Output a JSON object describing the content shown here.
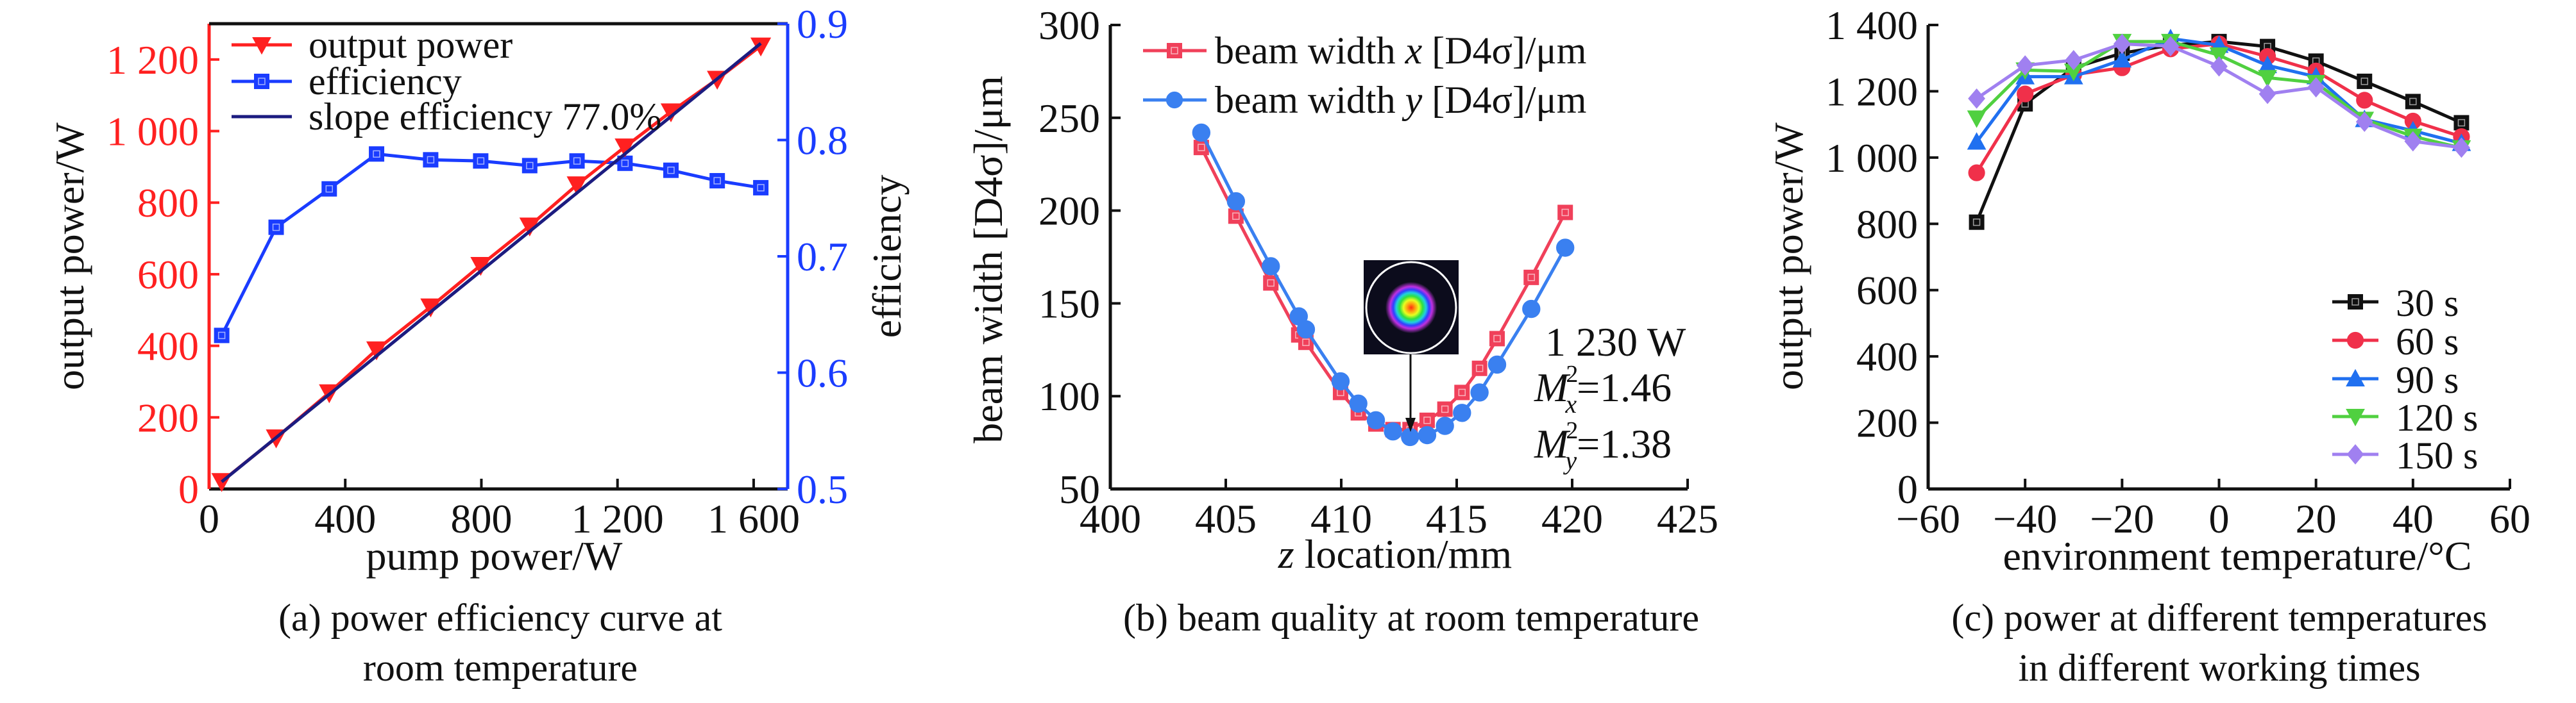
{
  "chart_data": [
    {
      "type": "line",
      "caption": [
        "(a) power efficiency curve at",
        "room temperature"
      ],
      "xlabel": "pump power/W",
      "ylabel": "output power/W",
      "y2label": "efficiency",
      "xlim": [
        0,
        1700
      ],
      "ylim": [
        0,
        1300
      ],
      "y2lim": [
        0.5,
        0.9
      ],
      "xticks": [
        0,
        400,
        800,
        1200,
        1600
      ],
      "xtick_labels": [
        "0",
        "400",
        "800",
        "1 200",
        "1 600"
      ],
      "yticks": [
        0,
        200,
        400,
        600,
        800,
        1000,
        1200
      ],
      "ytick_labels": [
        "0",
        "200",
        "400",
        "600",
        "800",
        "1 000",
        "1 200"
      ],
      "y2ticks": [
        0.5,
        0.6,
        0.7,
        0.8,
        0.9
      ],
      "y2tick_labels": [
        "0.5",
        "0.6",
        "0.7",
        "0.8",
        "0.9"
      ],
      "left_axis_color": "#ff2020",
      "right_axis_color": "#1a3cff",
      "legend_position": "top-left",
      "x": [
        37,
        197,
        353,
        492,
        651,
        798,
        942,
        1081,
        1222,
        1357,
        1493,
        1621
      ],
      "series": [
        {
          "name": "output power",
          "axis": "left",
          "marker": "triangle-down",
          "color": "#ff2020",
          "values": [
            21,
            143,
            269,
            389,
            509,
            625,
            735,
            850,
            956,
            1054,
            1145,
            1238
          ]
        },
        {
          "name": "efficiency",
          "axis": "right",
          "marker": "square",
          "color": "#1a3cff",
          "values": [
            0.632,
            0.725,
            0.758,
            0.788,
            0.783,
            0.782,
            0.778,
            0.782,
            0.78,
            0.774,
            0.765,
            0.759
          ]
        },
        {
          "name": "slope efficiency 77.0%",
          "axis": "left",
          "marker": "none",
          "color": "#1c1c80",
          "x": [
            37,
            1621
          ],
          "values": [
            20,
            1245
          ]
        }
      ]
    },
    {
      "type": "line",
      "caption": [
        "(b) beam quality at room temperature"
      ],
      "xlabel_italic": "z",
      "xlabel": " location/mm",
      "ylabel": "beam width [D4σ]/μm",
      "xlim": [
        400,
        425
      ],
      "ylim": [
        50,
        300
      ],
      "xticks": [
        400,
        405,
        410,
        415,
        420,
        425
      ],
      "xtick_labels": [
        "400",
        "405",
        "410",
        "415",
        "420",
        "425"
      ],
      "yticks": [
        50,
        100,
        150,
        200,
        250,
        300
      ],
      "ytick_labels": [
        "50",
        "100",
        "150",
        "200",
        "250",
        "300"
      ],
      "legend_position": "top",
      "x": [
        403.94,
        405.44,
        406.95,
        408.16,
        408.47,
        409.97,
        410.74,
        411.5,
        412.24,
        412.98,
        413.72,
        414.49,
        415.23,
        415.99,
        416.75,
        418.23,
        419.7
      ],
      "series": [
        {
          "name_pre": "beam width ",
          "name_italic": "x",
          "name_post": " [D4σ]/μm",
          "marker": "square",
          "color": "#f0405a",
          "values": [
            234,
            197,
            161,
            133,
            129,
            102,
            91,
            85,
            82,
            82,
            87,
            93,
            102,
            115,
            131,
            164,
            199
          ]
        },
        {
          "name_pre": "beam width ",
          "name_italic": "y",
          "name_post": " [D4σ]/μm",
          "marker": "circle",
          "color": "#3a80f0",
          "values": [
            242,
            205,
            170,
            143,
            136,
            108,
            96,
            87,
            81,
            78,
            79,
            84,
            91,
            102,
            117,
            147,
            180
          ]
        }
      ],
      "annotation": {
        "power": "1 230 W",
        "mx": {
          "symbol": "M",
          "sub": "x",
          "sup": "2",
          "value": "=1.46"
        },
        "my": {
          "symbol": "M",
          "sub": "y",
          "sup": "2",
          "value": "=1.38"
        },
        "arrow_target_x": 413
      }
    },
    {
      "type": "line",
      "caption": [
        "(c) power at different temperatures",
        "in different working times"
      ],
      "xlabel": "environment temperature/°C",
      "ylabel": "output power/W",
      "xlim": [
        -60,
        60
      ],
      "ylim": [
        0,
        1400
      ],
      "xticks": [
        -60,
        -40,
        -20,
        0,
        20,
        40,
        60
      ],
      "xtick_labels": [
        "−60",
        "−40",
        "−20",
        "0",
        "20",
        "40",
        "60"
      ],
      "yticks": [
        0,
        200,
        400,
        600,
        800,
        1000,
        1200,
        1400
      ],
      "ytick_labels": [
        "0",
        "200",
        "400",
        "600",
        "800",
        "1 000",
        "1 200",
        "1 400"
      ],
      "legend_position": "bottom-right",
      "x": [
        -50,
        -40,
        -30,
        -20,
        -10,
        0,
        10,
        20,
        30,
        40,
        50
      ],
      "series": [
        {
          "name": "30 s",
          "marker": "square",
          "color": "#111111",
          "values": [
            805,
            1162,
            1271,
            1315,
            1339,
            1350,
            1335,
            1291,
            1230,
            1169,
            1105
          ]
        },
        {
          "name": "60 s",
          "marker": "circle",
          "color": "#f0304a",
          "values": [
            954,
            1192,
            1250,
            1271,
            1328,
            1343,
            1305,
            1261,
            1173,
            1110,
            1063
          ]
        },
        {
          "name": "90 s",
          "marker": "triangle-up",
          "color": "#2070f0",
          "values": [
            1047,
            1244,
            1244,
            1295,
            1359,
            1339,
            1278,
            1244,
            1115,
            1081,
            1043
          ]
        },
        {
          "name": "120 s",
          "marker": "triangle-down",
          "color": "#50d040",
          "values": [
            1119,
            1264,
            1260,
            1350,
            1350,
            1309,
            1241,
            1226,
            1115,
            1064,
            1029
          ]
        },
        {
          "name": "150 s",
          "marker": "diamond",
          "color": "#a080f0",
          "values": [
            1178,
            1278,
            1294,
            1343,
            1336,
            1275,
            1192,
            1212,
            1108,
            1049,
            1030
          ]
        }
      ]
    }
  ]
}
